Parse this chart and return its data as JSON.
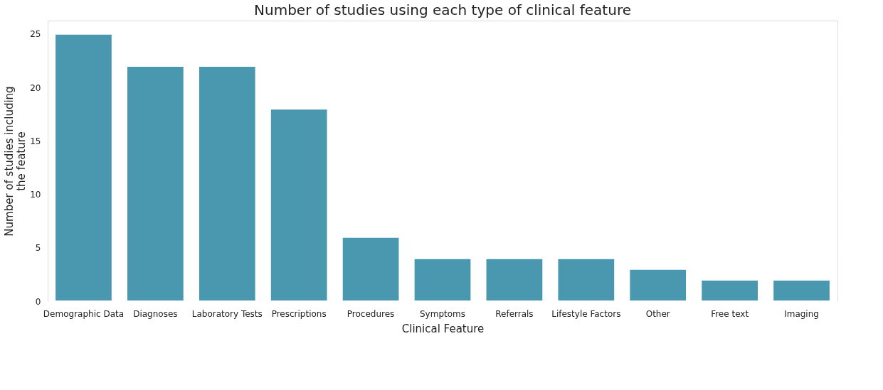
{
  "chart_data": {
    "type": "bar",
    "title": "Number of studies using each type of clinical feature",
    "xlabel": "Clinical Feature",
    "ylabel": "Number of studies including\nthe feature",
    "categories": [
      "Demographic\nData",
      "Diagnoses",
      "Laboratory\nTests",
      "Prescriptions",
      "Procedures",
      "Symptoms",
      "Referrals",
      "Lifestyle\nFactors",
      "Other",
      "Free\ntext",
      "Imaging"
    ],
    "values": [
      25,
      22,
      22,
      18,
      6,
      4,
      4,
      4,
      3,
      2,
      2
    ],
    "color": "#4a98b0",
    "ylim": [
      0,
      26.25
    ],
    "yticks": [
      0,
      5,
      10,
      15,
      20,
      25
    ],
    "grid": "y"
  }
}
